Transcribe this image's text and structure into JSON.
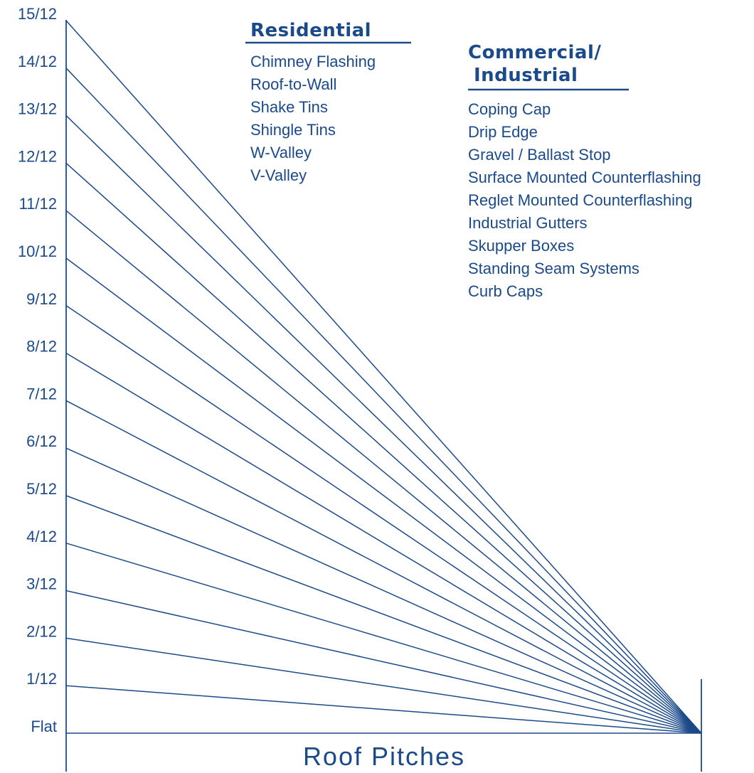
{
  "colors": {
    "ink": "#1b4a8a"
  },
  "pitches": [
    "Flat",
    "1/12",
    "2/12",
    "3/12",
    "4/12",
    "5/12",
    "6/12",
    "7/12",
    "8/12",
    "9/12",
    "10/12",
    "11/12",
    "12/12",
    "13/12",
    "14/12",
    "15/12"
  ],
  "residential": {
    "heading": "Residential",
    "items": [
      "Chimney Flashing",
      "Roof-to-Wall",
      "Shake Tins",
      "Shingle Tins",
      "W-Valley",
      "V-Valley"
    ]
  },
  "commercial": {
    "heading_line1": "Commercial/",
    "heading_line2": "Industrial",
    "items": [
      "Coping Cap",
      "Drip Edge",
      "Gravel / Ballast Stop",
      "Surface Mounted Counterflashing",
      "Reglet Mounted Counterflashing",
      "Industrial Gutters",
      "Skupper Boxes",
      "Standing Seam Systems",
      "Curb Caps"
    ]
  },
  "caption": "Roof Pitches"
}
